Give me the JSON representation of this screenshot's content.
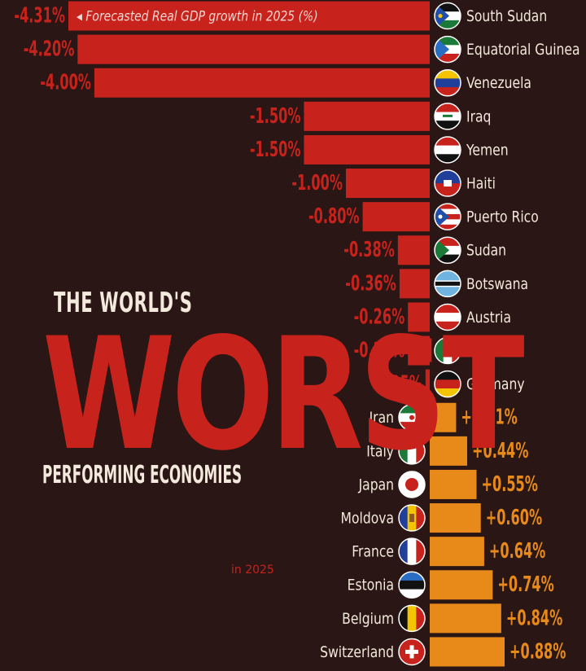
{
  "headline": {
    "line1": "THE WORLD'S",
    "line2": "WORST",
    "line3": "PERFORMING ECONOMIES",
    "line4": "in 2025"
  },
  "colors": {
    "background": "#2a1614",
    "negative_bar": "#c8221d",
    "positive_bar": "#e88a1a",
    "label_text": "#f3e9dc"
  },
  "chart_data": {
    "type": "bar",
    "orientation": "horizontal",
    "legend_note": "◂ Forecasted Real GDP growth in 2025 (%)",
    "xlabel": "Forecasted Real GDP growth in 2025 (%)",
    "ylabel": "",
    "categories": [
      "South Sudan",
      "Equatorial Guinea",
      "Venezuela",
      "Iraq",
      "Yemen",
      "Haiti",
      "Puerto Rico",
      "Sudan",
      "Botswana",
      "Austria",
      "Mexico",
      "Germany",
      "Iran",
      "Italy",
      "Japan",
      "Moldova",
      "France",
      "Estonia",
      "Belgium",
      "Switzerland"
    ],
    "values": [
      -4.31,
      -4.2,
      -4.0,
      -1.5,
      -1.5,
      -1.0,
      -0.8,
      -0.38,
      -0.36,
      -0.26,
      -0.26,
      -0.05,
      0.31,
      0.44,
      0.55,
      0.6,
      0.64,
      0.74,
      0.84,
      0.88
    ],
    "value_labels": [
      "-4.31%",
      "-4.20%",
      "-4.00%",
      "-1.50%",
      "-1.50%",
      "-1.00%",
      "-0.80%",
      "-0.38%",
      "-0.36%",
      "-0.26%",
      "-0.26%",
      "-0.05%",
      "+0.31%",
      "+0.44%",
      "+0.55%",
      "+0.60%",
      "+0.64%",
      "+0.74%",
      "+0.84%",
      "+0.88%"
    ],
    "flags": [
      "south-sudan-flag-icon",
      "equatorial-guinea-flag-icon",
      "venezuela-flag-icon",
      "iraq-flag-icon",
      "yemen-flag-icon",
      "haiti-flag-icon",
      "puerto-rico-flag-icon",
      "sudan-flag-icon",
      "botswana-flag-icon",
      "austria-flag-icon",
      "mexico-flag-icon",
      "germany-flag-icon",
      "iran-flag-icon",
      "italy-flag-icon",
      "japan-flag-icon",
      "moldova-flag-icon",
      "france-flag-icon",
      "estonia-flag-icon",
      "belgium-flag-icon",
      "switzerland-flag-icon"
    ],
    "xlim": [
      -4.31,
      0.88
    ]
  }
}
